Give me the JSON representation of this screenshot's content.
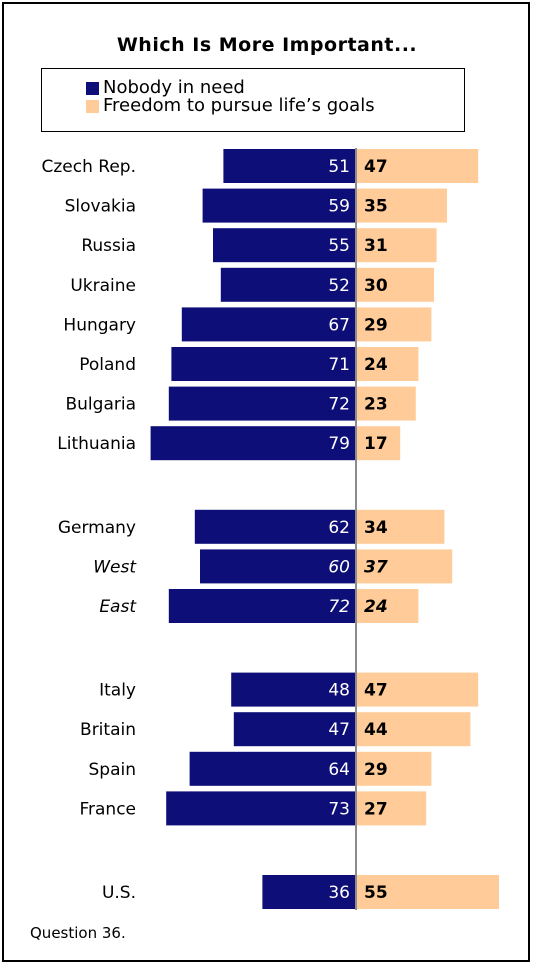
{
  "chart_data": {
    "type": "bar",
    "title": "Which Is More Important...",
    "series": [
      {
        "name": "Nobody in need",
        "color": "#0d0e77"
      },
      {
        "name": "Freedom to pursue life’s goals",
        "color": "#ffcc99"
      }
    ],
    "groups": [
      {
        "rows": [
          {
            "label": "Czech Rep.",
            "italic": false,
            "values": [
              51,
              47
            ]
          },
          {
            "label": "Slovakia",
            "italic": false,
            "values": [
              59,
              35
            ]
          },
          {
            "label": "Russia",
            "italic": false,
            "values": [
              55,
              31
            ]
          },
          {
            "label": "Ukraine",
            "italic": false,
            "values": [
              52,
              30
            ]
          },
          {
            "label": "Hungary",
            "italic": false,
            "values": [
              67,
              29
            ]
          },
          {
            "label": "Poland",
            "italic": false,
            "values": [
              71,
              24
            ]
          },
          {
            "label": "Bulgaria",
            "italic": false,
            "values": [
              72,
              23
            ]
          },
          {
            "label": "Lithuania",
            "italic": false,
            "values": [
              79,
              17
            ]
          }
        ]
      },
      {
        "rows": [
          {
            "label": "Germany",
            "italic": false,
            "values": [
              62,
              34
            ]
          },
          {
            "label": "West",
            "italic": true,
            "values": [
              60,
              37
            ]
          },
          {
            "label": "East",
            "italic": true,
            "values": [
              72,
              24
            ]
          }
        ]
      },
      {
        "rows": [
          {
            "label": "Italy",
            "italic": false,
            "values": [
              48,
              47
            ]
          },
          {
            "label": "Britain",
            "italic": false,
            "values": [
              47,
              44
            ]
          },
          {
            "label": "Spain",
            "italic": false,
            "values": [
              64,
              29
            ]
          },
          {
            "label": "France",
            "italic": false,
            "values": [
              73,
              27
            ]
          }
        ]
      },
      {
        "rows": [
          {
            "label": "U.S.",
            "italic": false,
            "values": [
              36,
              55
            ]
          }
        ]
      }
    ],
    "xlim": [
      0,
      100
    ],
    "grid": false,
    "legend_position": "top"
  },
  "footnote": "Question 36."
}
